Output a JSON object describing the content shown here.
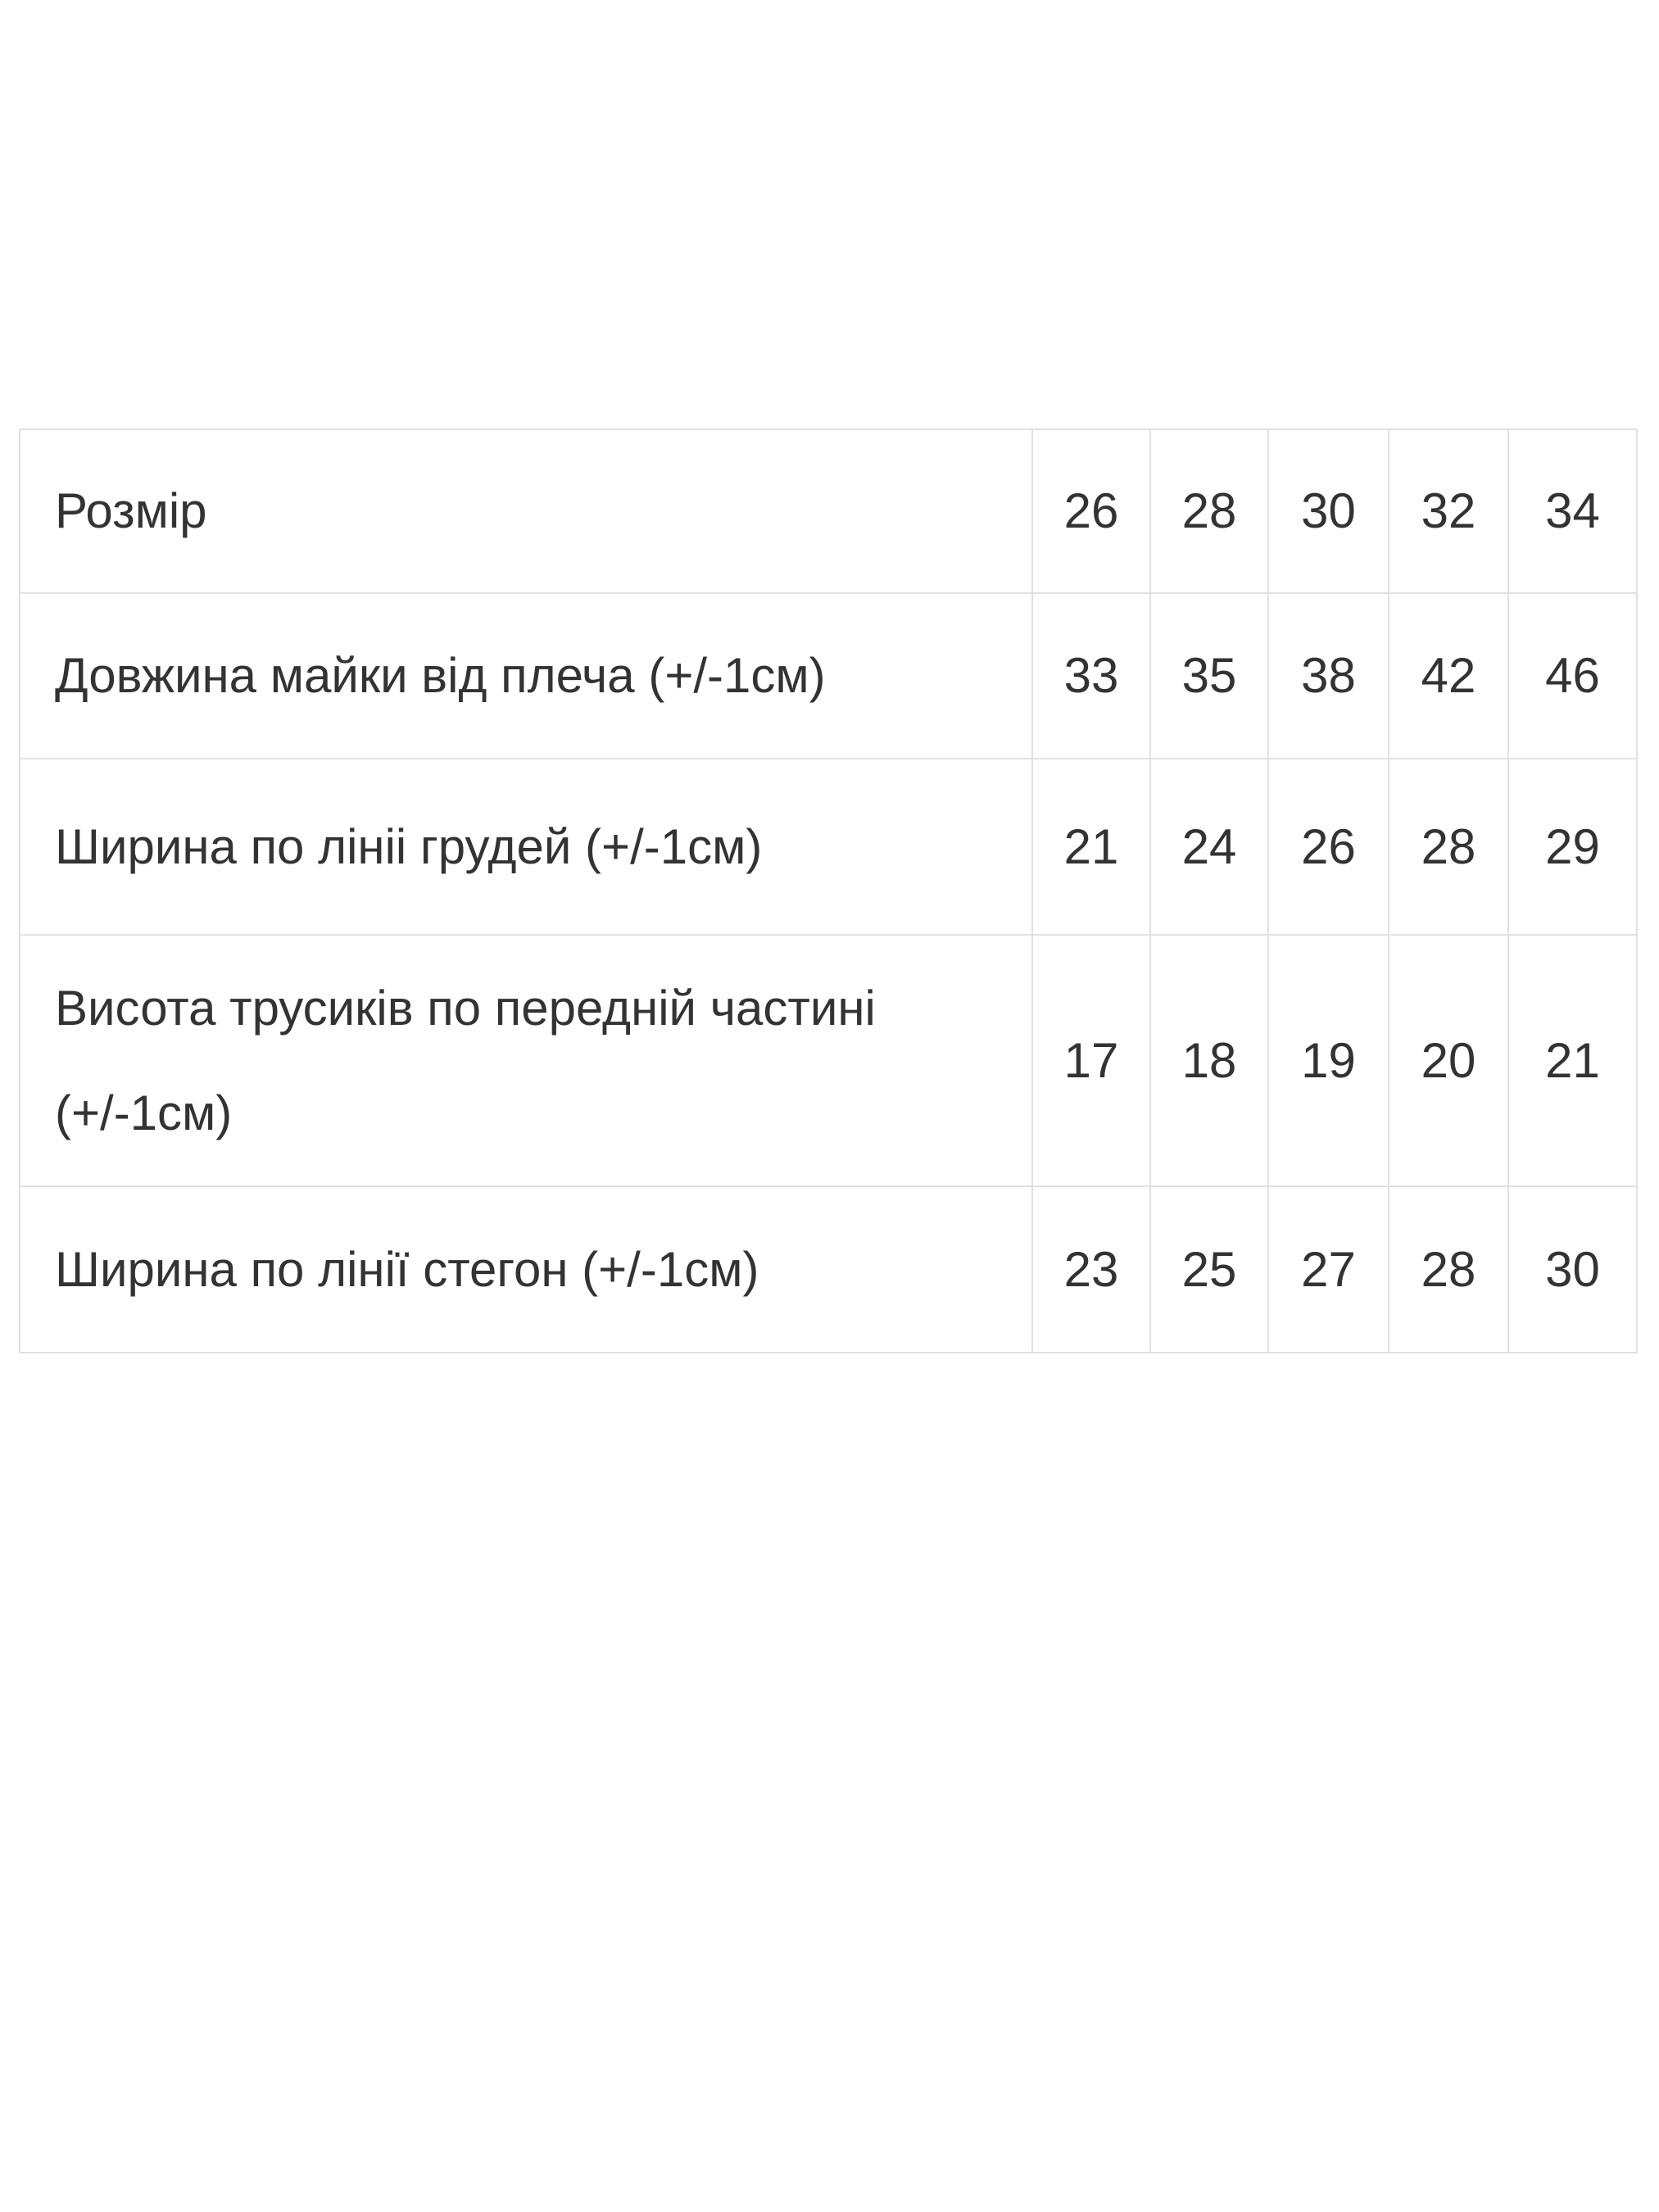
{
  "colors": {
    "background": "#ffffff",
    "text": "#333333",
    "border": "#e1e1e1"
  },
  "size_table": {
    "rows": [
      {
        "label": "Розмір",
        "values": [
          "26",
          "28",
          "30",
          "32",
          "34"
        ]
      },
      {
        "label": "Довжина майки від плеча (+/-1см)",
        "values": [
          "33",
          "35",
          "38",
          "42",
          "46"
        ]
      },
      {
        "label": "Ширина по лініі грудей (+/-1см)",
        "values": [
          "21",
          "24",
          "26",
          "28",
          "29"
        ]
      },
      {
        "label": "Висота трусиків по передній частині\n(+/-1см)",
        "values": [
          "17",
          "18",
          "19",
          "20",
          "21"
        ]
      },
      {
        "label": "Ширина по лінії стегон (+/-1см)",
        "values": [
          "23",
          "25",
          "27",
          "28",
          "30"
        ]
      }
    ]
  },
  "chart_data": {
    "type": "table",
    "title": "",
    "columns": [
      "Розмір",
      "26",
      "28",
      "30",
      "32",
      "34"
    ],
    "rows": [
      [
        "Розмір",
        "26",
        "28",
        "30",
        "32",
        "34"
      ],
      [
        "Довжина майки від плеча (+/-1см)",
        "33",
        "35",
        "38",
        "42",
        "46"
      ],
      [
        "Ширина по лініі грудей (+/-1см)",
        "21",
        "24",
        "26",
        "28",
        "29"
      ],
      [
        "Висота трусиків по передній частині (+/-1см)",
        "17",
        "18",
        "19",
        "20",
        "21"
      ],
      [
        "Ширина по лінії стегон (+/-1см)",
        "23",
        "25",
        "27",
        "28",
        "30"
      ]
    ]
  }
}
